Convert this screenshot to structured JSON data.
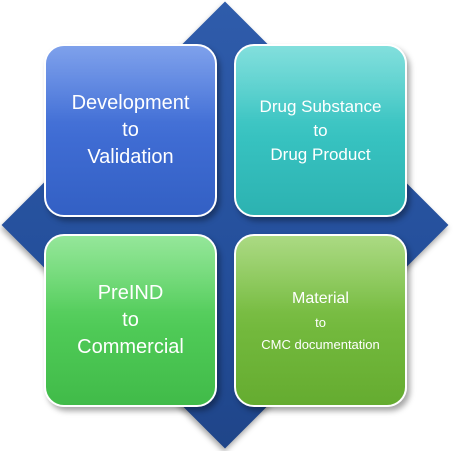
{
  "quadrants": {
    "top_left": {
      "line1": "Development",
      "line2": "to",
      "line3": "Validation",
      "color": "#3f6cd3"
    },
    "top_right": {
      "line1": "Drug Substance",
      "line2": "to",
      "line3": "Drug Product",
      "color": "#37c2c0"
    },
    "bottom_left": {
      "line1": "PreIND",
      "line2": "to",
      "line3": "Commercial",
      "color": "#4fca57"
    },
    "bottom_right": {
      "line1": "Material",
      "line2": "to",
      "line3": "CMC documentation",
      "color": "#73b93d"
    }
  },
  "diamond_color": "#2a54a0"
}
